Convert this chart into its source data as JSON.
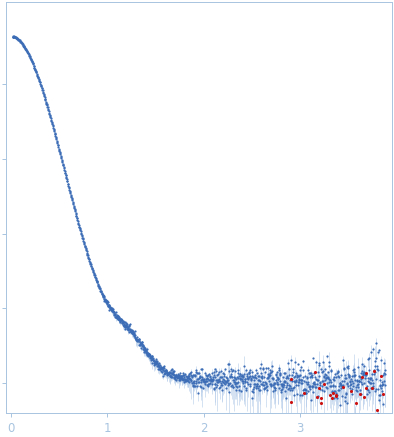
{
  "title": "",
  "xlabel": "",
  "ylabel": "",
  "xlim": [
    -0.05,
    3.95
  ],
  "ylim": [
    -0.08,
    1.02
  ],
  "x_ticks": [
    0,
    1,
    2,
    3
  ],
  "y_ticks": [
    0.0,
    0.2,
    0.4,
    0.6,
    0.8
  ],
  "background_color": "#ffffff",
  "dot_color_main": "#3B6CB5",
  "dot_color_outlier": "#CC1111",
  "error_bar_color": "#B8CFEA",
  "spine_color": "#A8C4E0",
  "tick_color": "#A8C4E0",
  "tick_label_color": "#6AAACF",
  "figsize": [
    3.94,
    4.37
  ],
  "dpi": 100,
  "seed": 12345
}
